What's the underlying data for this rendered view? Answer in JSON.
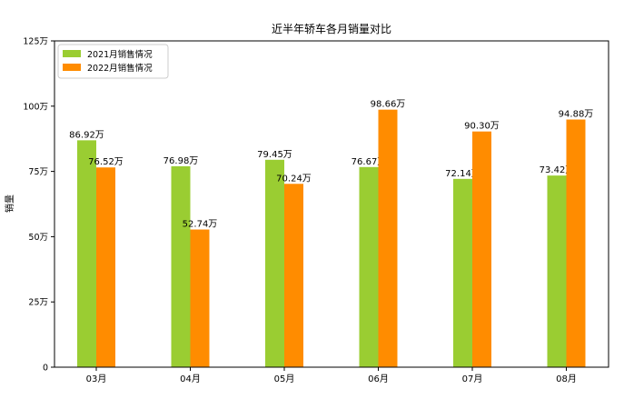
{
  "chart_data": {
    "type": "bar",
    "title": "近半年轿车各月销量对比",
    "xlabel": "",
    "ylabel": "销量",
    "categories": [
      "03月",
      "04月",
      "05月",
      "06月",
      "07月",
      "08月"
    ],
    "series": [
      {
        "name": "2021月销售情况",
        "color": "#9acd32",
        "values": [
          86.92,
          76.98,
          79.45,
          76.67,
          72.14,
          73.42
        ],
        "labels": [
          "86.92万",
          "76.98万",
          "79.45万",
          "76.67万",
          "72.14万",
          "73.42万"
        ]
      },
      {
        "name": "2022月销售情况",
        "color": "#ff8c00",
        "values": [
          76.52,
          52.74,
          70.24,
          98.66,
          90.3,
          94.88
        ],
        "labels": [
          "76.52万",
          "52.74万",
          "70.24万",
          "98.66万",
          "90.30万",
          "94.88万"
        ]
      }
    ],
    "ylim": [
      0,
      125
    ],
    "yticks": [
      0,
      25,
      50,
      75,
      100,
      125
    ],
    "ytick_labels": [
      "0",
      "25万",
      "50万",
      "75万",
      "100万",
      "125万"
    ],
    "grid": false,
    "legend": "top-left"
  }
}
